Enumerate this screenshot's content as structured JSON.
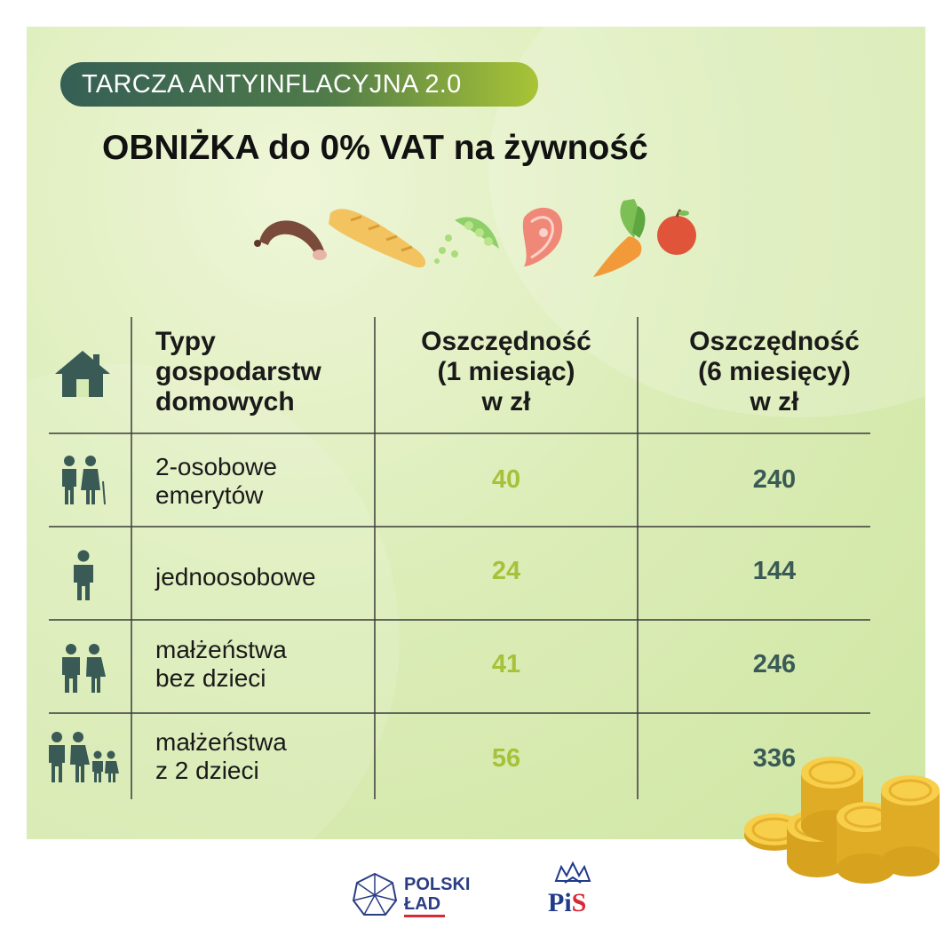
{
  "header": {
    "badge": "TARCZA ANTYINFLACYJNA 2.0",
    "title": "OBNIŻKA do 0% VAT na żywność"
  },
  "colors": {
    "background": "#d8ebb2",
    "badge_start": "#355f55",
    "badge_end": "#a9c436",
    "value_monthly": "#a8c13a",
    "value_six_months": "#3a5a56",
    "icon": "#3a5a56"
  },
  "icons": [
    "sausage-icon",
    "baguette-icon",
    "peas-icon",
    "salmon-icon",
    "carrot-icon",
    "apple-icon",
    "house-icon",
    "coins-icon"
  ],
  "table": {
    "headers": {
      "type_line1": "Typy",
      "type_line2": "gospodarstw",
      "type_line3": "domowych",
      "m1_line1": "Oszczędność",
      "m1_line2": "(1 miesiąc)",
      "m1_line3": "w zł",
      "m6_line1": "Oszczędność",
      "m6_line2": "(6 miesięcy)",
      "m6_line3": "w zł"
    },
    "rows": [
      {
        "icon": "elderly-couple-icon",
        "label_line1": "2-osobowe",
        "label_line2": "emerytów",
        "one_month": "40",
        "six_months": "240"
      },
      {
        "icon": "single-person-icon",
        "label_line1": "jednoosobowe",
        "label_line2": "",
        "one_month": "24",
        "six_months": "144"
      },
      {
        "icon": "couple-icon",
        "label_line1": "małżeństwa",
        "label_line2": "bez dzieci",
        "one_month": "41",
        "six_months": "246"
      },
      {
        "icon": "family-icon",
        "label_line1": "małżeństwa",
        "label_line2": "z 2 dzieci",
        "one_month": "56",
        "six_months": "336"
      }
    ]
  },
  "footer": {
    "polski_line1": "POLSKI",
    "polski_line2": "ŁAD",
    "pis_p": "P",
    "pis_i": "i",
    "pis_s": "S"
  }
}
